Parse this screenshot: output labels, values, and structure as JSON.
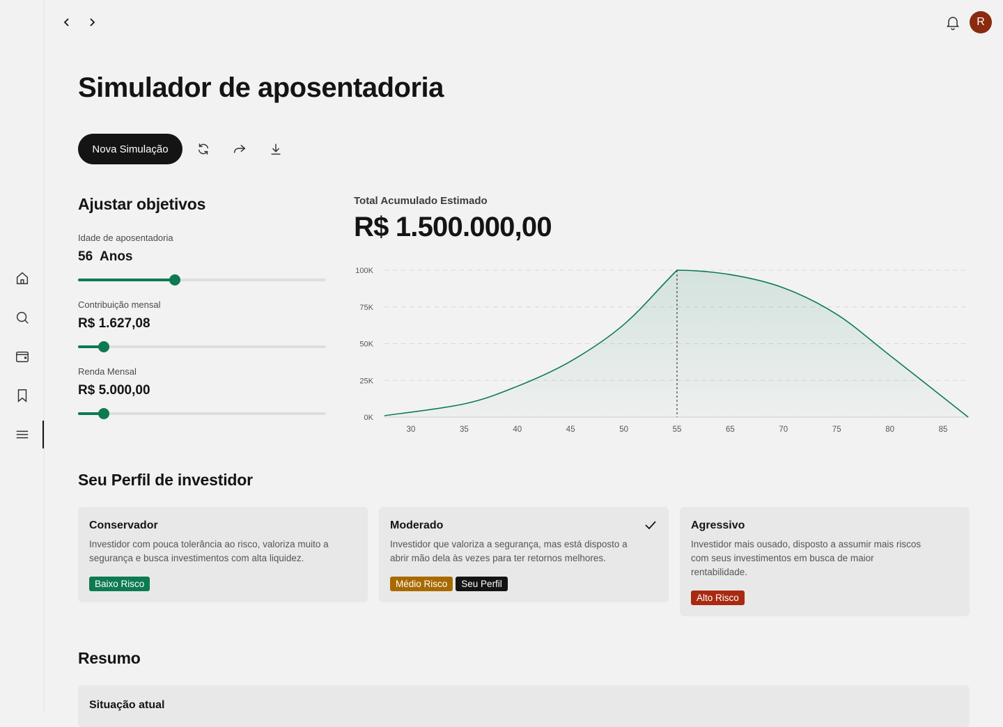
{
  "header": {
    "avatar_initial": "R"
  },
  "page": {
    "title": "Simulador de aposentadoria"
  },
  "toolbar": {
    "new_simulation": "Nova Simulação"
  },
  "objectives": {
    "title": "Ajustar objetivos",
    "fields": [
      {
        "label": "Idade de aposentadoria",
        "value": "56  Anos",
        "slider_fraction": 0.39
      },
      {
        "label": "Contribuição mensal",
        "value": "R$ 1.627,08",
        "slider_fraction": 0.105
      },
      {
        "label": "Renda Mensal",
        "value": "R$ 5.000,00",
        "slider_fraction": 0.105
      }
    ]
  },
  "estimate": {
    "label": "Total Acumulado Estimado",
    "total": "R$ 1.500.000,00"
  },
  "chart_data": {
    "type": "area",
    "categories": [
      "30",
      "35",
      "40",
      "45",
      "50",
      "55",
      "65",
      "70",
      "75",
      "80",
      "85"
    ],
    "y_ticks": [
      "0K",
      "25K",
      "50K",
      "75K",
      "100K"
    ],
    "ylim": [
      0,
      100000
    ],
    "series": [
      {
        "values": [
          1000,
          9000,
          21000,
          38000,
          63000,
          100000,
          97000,
          88000,
          70000,
          42000,
          0
        ]
      }
    ],
    "marker_at": "55",
    "line_color": "#0d7a52",
    "grid": "dashed-horizontal"
  },
  "profile": {
    "title": "Seu Perfil de investidor",
    "cards": [
      {
        "title": "Conservador",
        "desc": "Investidor com pouca tolerância ao risco, valoriza muito a segurança e busca investimentos com alta liquidez.",
        "badge": "Baixo Risco",
        "badge_color": "#0d7a52",
        "selected": false
      },
      {
        "title": "Moderado",
        "desc": "Investidor que valoriza a segurança, mas está disposto a abrir mão dela às vezes para ter retornos melhores.",
        "badge": "Médio Risco",
        "badge_color": "#a86a00",
        "extra_badge": "Seu Perfil",
        "selected": true
      },
      {
        "title": "Agressivo",
        "desc": "Investidor mais ousado, disposto a assumir mais riscos com seus investimentos em busca de maior rentabilidade.",
        "badge": "Alto Risco",
        "badge_color": "#a82a10",
        "selected": false
      }
    ]
  },
  "summary": {
    "title": "Resumo",
    "card_title": "Situação atual"
  },
  "colors": {
    "accent": "#0d7a52",
    "primary": "#141414",
    "avatar": "#8a2a0e"
  }
}
